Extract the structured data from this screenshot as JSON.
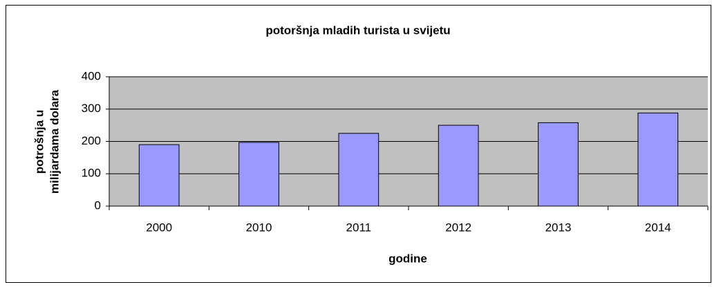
{
  "chart_data": {
    "type": "bar",
    "title": "potoršnja mladih turista u svijetu",
    "x_label": "godine",
    "y_label": [
      "potrošnja u",
      "milijardama dolara"
    ],
    "categories": [
      "2000",
      "2010",
      "2011",
      "2012",
      "2013",
      "2014"
    ],
    "values": [
      190,
      197,
      225,
      250,
      258,
      288
    ],
    "color": "#9999ff",
    "ylim": [
      0,
      400
    ],
    "yticks": [
      0,
      100,
      200,
      300,
      400
    ],
    "grid": true
  }
}
